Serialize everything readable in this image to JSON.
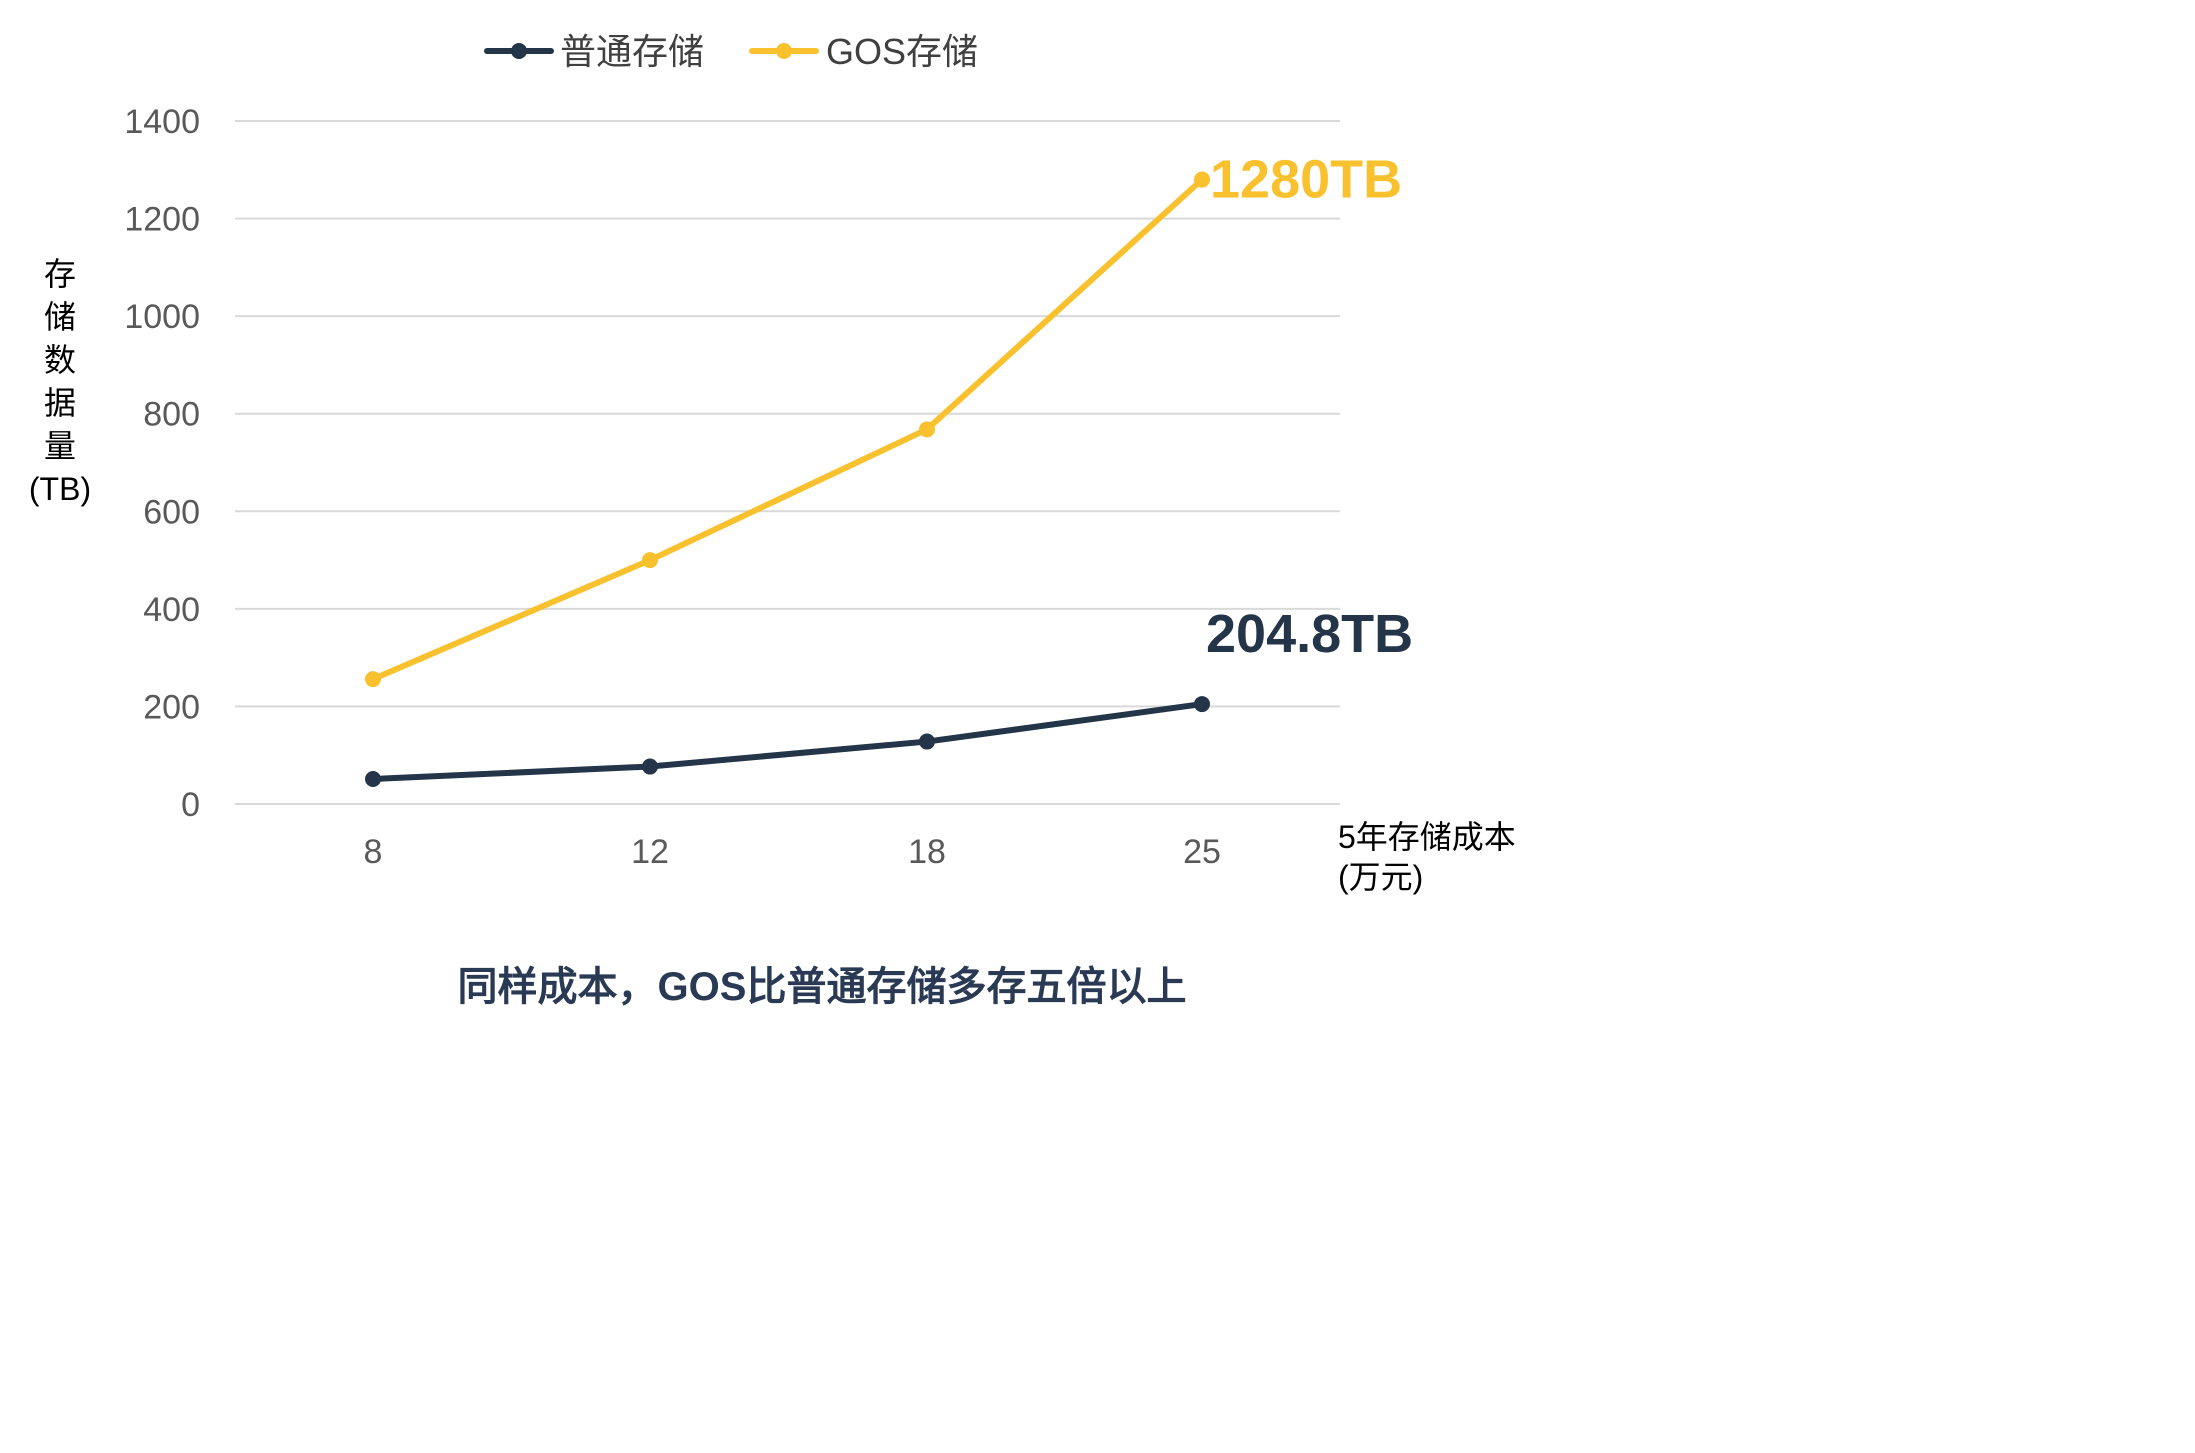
{
  "chart_data": {
    "type": "line",
    "categories": [
      "8",
      "12",
      "18",
      "25"
    ],
    "series": [
      {
        "name": "普通存储",
        "values": [
          51.2,
          76.8,
          128,
          204.8
        ],
        "color": "#243449"
      },
      {
        "name": "GOS存储",
        "values": [
          256,
          500,
          768,
          1280
        ],
        "color": "#f8c12d"
      }
    ],
    "ylim": [
      0,
      1400
    ],
    "yticks": [
      0,
      200,
      400,
      600,
      800,
      1000,
      1200,
      1400
    ],
    "ylabel_lines": [
      "存",
      "储",
      "数",
      "据",
      "量",
      "(TB)"
    ],
    "xlabel_lines": [
      "5年存储成本",
      "(万元)"
    ],
    "data_labels": [
      {
        "series": 0,
        "index": 3,
        "text": "204.8TB",
        "color": "#243449"
      },
      {
        "series": 1,
        "index": 3,
        "text": "1280TB",
        "color": "#f8c12d"
      }
    ],
    "grid": true,
    "legend_position": "top-center",
    "caption": "同样成本，GOS比普通存储多存五倍以上",
    "gridline_color": "#d9d9d9"
  }
}
